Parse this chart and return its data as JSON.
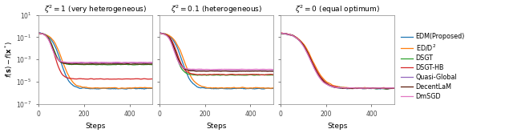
{
  "titles": [
    "$\\zeta^2 = 1$ (very heterogeneous)",
    "$\\zeta^2 = 0.1$ (heterogeneous)",
    "$\\zeta^2 = 0$ (equal optimum)"
  ],
  "xlabel": "Steps",
  "ylabel": "$f(\\mathbf{s}) - f(\\mathbf{x}^*)$",
  "ylim_log": [
    -7,
    1
  ],
  "xlim": [
    0,
    500
  ],
  "xticks": [
    0,
    200,
    400
  ],
  "legend_labels": [
    "EDM(Proposed)",
    "ED/D$^2$",
    "DSGT",
    "DSGT-HB",
    "Quasi-Global",
    "DecentLaM",
    "DmSGD"
  ],
  "colors": [
    "#1f77b4",
    "#ff7f0e",
    "#2ca02c",
    "#d62728",
    "#9467bd",
    "#5c1a0a",
    "#e377c2"
  ],
  "linewidths": [
    0.9,
    0.9,
    0.9,
    0.9,
    0.9,
    0.9,
    0.9
  ],
  "n_steps": 500,
  "seed": 0,
  "panels": [
    {
      "comment": "zeta2=1 very heterogeneous",
      "curves": [
        {
          "start": 0.25,
          "end": 2.5e-06,
          "decay_knee": 160,
          "final_noise": 0.08
        },
        {
          "start": 0.25,
          "end": 2.8e-06,
          "decay_knee": 175,
          "final_noise": 0.08
        },
        {
          "start": 0.25,
          "end": 0.00035,
          "decay_knee": 110,
          "final_noise": 0.05
        },
        {
          "start": 0.25,
          "end": 1.8e-05,
          "decay_knee": 120,
          "final_noise": 0.05
        },
        {
          "start": 0.25,
          "end": 0.0005,
          "decay_knee": 100,
          "final_noise": 0.04
        },
        {
          "start": 0.25,
          "end": 0.0004,
          "decay_knee": 105,
          "final_noise": 0.04
        },
        {
          "start": 0.25,
          "end": 0.00055,
          "decay_knee": 98,
          "final_noise": 0.04
        }
      ]
    },
    {
      "comment": "zeta2=0.1 heterogeneous",
      "curves": [
        {
          "start": 0.25,
          "end": 2.5e-06,
          "decay_knee": 165,
          "final_noise": 0.08
        },
        {
          "start": 0.25,
          "end": 2.8e-06,
          "decay_knee": 180,
          "final_noise": 0.08
        },
        {
          "start": 0.25,
          "end": 4e-05,
          "decay_knee": 120,
          "final_noise": 0.05
        },
        {
          "start": 0.25,
          "end": 4.5e-05,
          "decay_knee": 130,
          "final_noise": 0.05
        },
        {
          "start": 0.25,
          "end": 0.0001,
          "decay_knee": 112,
          "final_noise": 0.04
        },
        {
          "start": 0.25,
          "end": 9e-05,
          "decay_knee": 118,
          "final_noise": 0.04
        },
        {
          "start": 0.25,
          "end": 0.00013,
          "decay_knee": 108,
          "final_noise": 0.04
        }
      ]
    },
    {
      "comment": "zeta2=0 equal optimum",
      "curves": [
        {
          "start": 0.25,
          "end": 2.5e-06,
          "decay_knee": 230,
          "final_noise": 0.08
        },
        {
          "start": 0.25,
          "end": 2.8e-06,
          "decay_knee": 235,
          "final_noise": 0.08
        },
        {
          "start": 0.25,
          "end": 2.6e-06,
          "decay_knee": 225,
          "final_noise": 0.06
        },
        {
          "start": 0.25,
          "end": 2.7e-06,
          "decay_knee": 228,
          "final_noise": 0.06
        },
        {
          "start": 0.25,
          "end": 2.6e-06,
          "decay_knee": 222,
          "final_noise": 0.05
        },
        {
          "start": 0.25,
          "end": 2.5e-06,
          "decay_knee": 225,
          "final_noise": 0.05
        },
        {
          "start": 0.25,
          "end": 2.7e-06,
          "decay_knee": 220,
          "final_noise": 0.05
        }
      ]
    }
  ]
}
